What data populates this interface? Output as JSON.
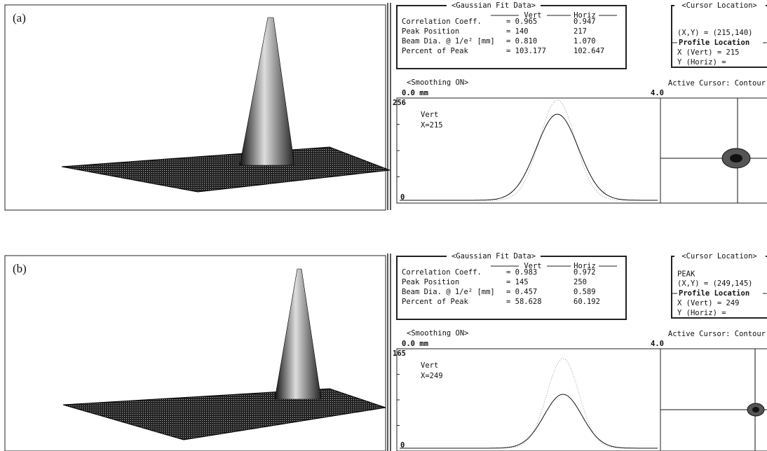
{
  "panels": [
    {
      "label": "(a)",
      "fit": {
        "title": "<Gaussian Fit Data>",
        "columns": [
          "Vert",
          "Horiz"
        ],
        "rows": [
          {
            "name": "Correlation Coeff.",
            "vert": "= 0.965",
            "horiz": "0.947"
          },
          {
            "name": "Peak Position",
            "vert": "= 140",
            "horiz": "217"
          },
          {
            "name": "Beam Dia. @ 1/e² [mm]",
            "vert": "= 0.810",
            "horiz": "1.070"
          },
          {
            "name": "Percent of Peak",
            "vert": "= 103.177",
            "horiz": "102.647"
          }
        ]
      },
      "cursor": {
        "title": "<Cursor Location>",
        "lines": [
          "(X,Y) = (215,140)"
        ],
        "profile_title": "Profile Location",
        "profile_lines": [
          "X (Vert) = 215",
          "Y (Horiz) ="
        ]
      },
      "smoothing": "<Smoothing ON>",
      "active_cursor": "Active Cursor: Contour",
      "x_start": "0.0 mm",
      "x_end": "4.0",
      "y_max": "256",
      "y_min": "0",
      "profile_name": "Vert",
      "profile_pos": "X=215"
    },
    {
      "label": "(b)",
      "fit": {
        "title": "<Gaussian Fit Data>",
        "columns": [
          "Vert",
          "Horiz"
        ],
        "rows": [
          {
            "name": "Correlation Coeff.",
            "vert": "= 0.983",
            "horiz": "0.972"
          },
          {
            "name": "Peak Position",
            "vert": "= 145",
            "horiz": "250"
          },
          {
            "name": "Beam Dia. @ 1/e² [mm]",
            "vert": "= 0.457",
            "horiz": "0.589"
          },
          {
            "name": "Percent of Peak",
            "vert": "= 58.628",
            "horiz": "60.192"
          }
        ]
      },
      "cursor": {
        "title": "<Cursor Location>",
        "lines": [
          "PEAK",
          "(X,Y) = (249,145)"
        ],
        "profile_title": "Profile Location",
        "profile_lines": [
          "X (Vert) = 249",
          "Y (Horiz) ="
        ]
      },
      "smoothing": "<Smoothing ON>",
      "active_cursor": "Active Cursor: Contour",
      "x_start": "0.0 mm",
      "x_end": "4.0",
      "y_max": "165",
      "y_min": "0",
      "profile_name": "Vert",
      "profile_pos": "X=249"
    }
  ]
}
